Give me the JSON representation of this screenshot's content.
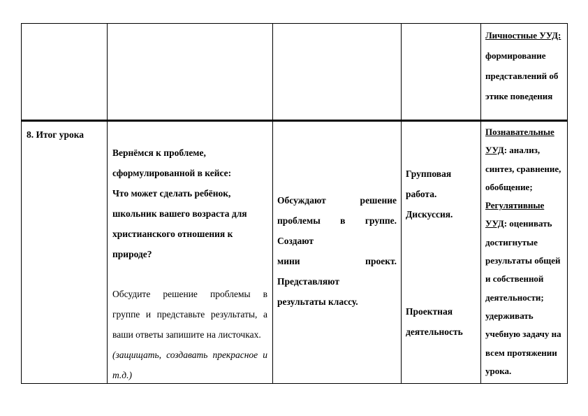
{
  "page": {
    "background": "#ffffff",
    "text_color": "#000000",
    "border_color": "#000000"
  },
  "table": {
    "row1": {
      "personal_uud": {
        "full_text": "Личностные УУД: формирование представлений об этике поведения",
        "lines": [
          {
            "u": "Личностные УУД:",
            "t": ""
          },
          {
            "u": "",
            "t": "формирование"
          },
          {
            "u": "",
            "t": "представлений об"
          },
          {
            "u": "",
            "t": "этике поведения"
          }
        ]
      }
    },
    "row2": {
      "stage": {
        "title": "8. Итог урока"
      },
      "teacher": {
        "p1_lines": [
          "Вернёмся к проблеме,",
          "сформулированной в кейсе:"
        ],
        "p2_lines": [
          "Что может сделать ребёнок,",
          "школьник вашего возраста для",
          "христианского отношения к",
          "природе?"
        ],
        "p3_lines": [
          "Обсудите решение проблемы в",
          "группе и представьте результаты, а",
          "ваши ответы запишите на листочках."
        ],
        "p4_lines": [
          "(защищать, создавать прекрасное и",
          "т.д.)"
        ]
      },
      "students": {
        "p1_lines": [
          "Обсуждают решение",
          "проблемы в группе. Создают",
          "мини проект. Представляют",
          "результаты классу."
        ]
      },
      "forms": {
        "p1_lines": [
          "Групповая",
          "работа.",
          "Дискуссия."
        ],
        "p2_lines": [
          "Проектная",
          "деятельность"
        ]
      },
      "uud": {
        "full_text": "Познавательные УУД: анализ, синтез, сравнение, обобщение; Регулятивные УУД: оценивать достигнутые результаты общей и собственной деятельности; удерживать учебную задачу на всем протяжении урока.",
        "lines": [
          {
            "u": "Познавательные",
            "t": ""
          },
          {
            "u": "УУД",
            "t": ": анализ,"
          },
          {
            "u": "",
            "t": "синтез, сравнение,"
          },
          {
            "u": "",
            "t": "обобщение;"
          },
          {
            "u": "Регулятивные",
            "t": ""
          },
          {
            "u": "УУД",
            "t": ": оценивать"
          },
          {
            "u": "",
            "t": "достигнутые"
          },
          {
            "u": "",
            "t": "результаты общей"
          },
          {
            "u": "",
            "t": "и собственной"
          },
          {
            "u": "",
            "t": "деятельности;"
          },
          {
            "u": "",
            "t": "удерживать"
          },
          {
            "u": "",
            "t": "учебную задачу на"
          },
          {
            "u": "",
            "t": "всем протяжении"
          },
          {
            "u": "",
            "t": "урока."
          }
        ]
      }
    }
  }
}
